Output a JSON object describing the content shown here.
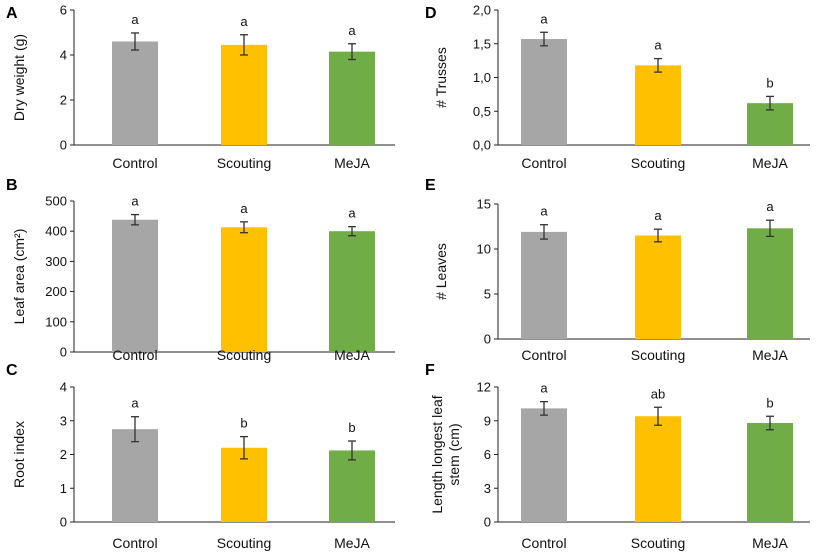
{
  "colors": {
    "Control": "#a6a6a6",
    "Scouting": "#ffc000",
    "MeJA": "#70ad47"
  },
  "chart_data": [
    {
      "panel": "A",
      "type": "bar",
      "ylabel": "Dry weight (g)",
      "categories": [
        "Control",
        "Scouting",
        "MeJA"
      ],
      "values": [
        4.6,
        4.45,
        4.15
      ],
      "errors": [
        0.38,
        0.45,
        0.35
      ],
      "letters": [
        "a",
        "a",
        "a"
      ],
      "ylim": [
        0,
        6
      ],
      "ticks": [
        0,
        2,
        4,
        6
      ],
      "tick_labels": [
        "0",
        "2",
        "4",
        "6"
      ]
    },
    {
      "panel": "B",
      "type": "bar",
      "ylabel": "Leaf area (cm²)",
      "categories": [
        "Control",
        "Scouting",
        "MeJA"
      ],
      "values": [
        438,
        413,
        400
      ],
      "errors": [
        17,
        18,
        15
      ],
      "letters": [
        "a",
        "a",
        "a"
      ],
      "ylim": [
        0,
        500
      ],
      "ticks": [
        0,
        100,
        200,
        300,
        400,
        500
      ],
      "tick_labels": [
        "0",
        "100",
        "200",
        "300",
        "400",
        "500"
      ]
    },
    {
      "panel": "C",
      "type": "bar",
      "ylabel": "Root index",
      "categories": [
        "Control",
        "Scouting",
        "MeJA"
      ],
      "values": [
        2.75,
        2.2,
        2.12
      ],
      "errors": [
        0.37,
        0.33,
        0.28
      ],
      "letters": [
        "a",
        "b",
        "b"
      ],
      "ylim": [
        0,
        4
      ],
      "ticks": [
        0,
        1,
        2,
        3,
        4
      ],
      "tick_labels": [
        "0",
        "1",
        "2",
        "3",
        "4"
      ]
    },
    {
      "panel": "D",
      "type": "bar",
      "ylabel": "# Trusses",
      "categories": [
        "Control",
        "Scouting",
        "MeJA"
      ],
      "values": [
        1.57,
        1.18,
        0.62
      ],
      "errors": [
        0.1,
        0.1,
        0.1
      ],
      "letters": [
        "a",
        "a",
        "b"
      ],
      "ylim": [
        0,
        2
      ],
      "ticks": [
        0,
        0.5,
        1,
        1.5,
        2
      ],
      "tick_labels": [
        "0,0",
        "0,5",
        "1,0",
        "1,5",
        "2,0"
      ]
    },
    {
      "panel": "E",
      "type": "bar",
      "ylabel": "# Leaves",
      "categories": [
        "Control",
        "Scouting",
        "MeJA"
      ],
      "values": [
        11.9,
        11.5,
        12.3
      ],
      "errors": [
        0.8,
        0.7,
        0.9
      ],
      "letters": [
        "a",
        "a",
        "a"
      ],
      "ylim": [
        0,
        15
      ],
      "ticks": [
        0,
        5,
        10,
        15
      ],
      "tick_labels": [
        "0",
        "5",
        "10",
        "15"
      ]
    },
    {
      "panel": "F",
      "type": "bar",
      "ylabel": [
        "Length longest leaf",
        "stem (cm)"
      ],
      "categories": [
        "Control",
        "Scouting",
        "MeJA"
      ],
      "values": [
        10.1,
        9.4,
        8.8
      ],
      "errors": [
        0.6,
        0.8,
        0.6
      ],
      "letters": [
        "a",
        "ab",
        "b"
      ],
      "ylim": [
        0,
        12
      ],
      "ticks": [
        0,
        3,
        6,
        9,
        12
      ],
      "tick_labels": [
        "0",
        "3",
        "6",
        "9",
        "12"
      ]
    }
  ]
}
